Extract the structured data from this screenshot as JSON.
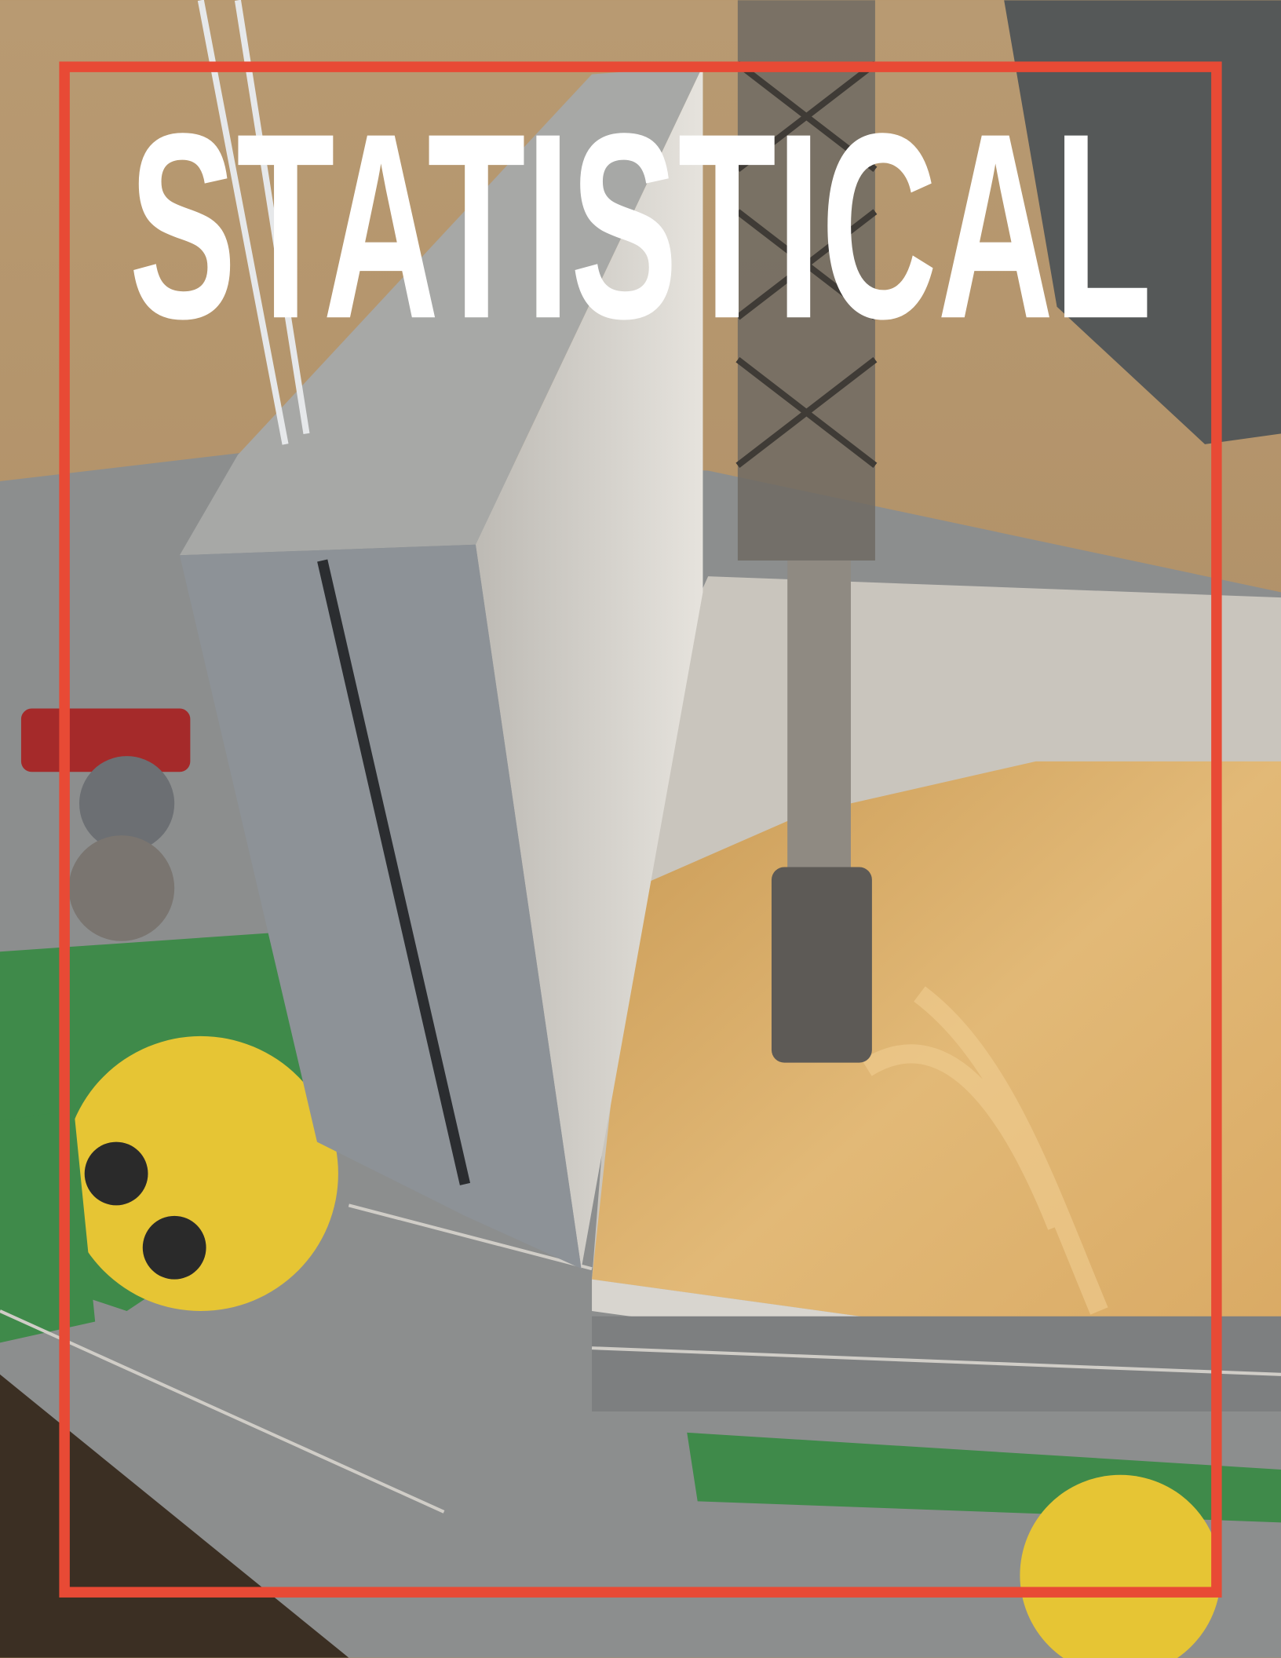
{
  "cover": {
    "title": "STATISTICAL"
  }
}
